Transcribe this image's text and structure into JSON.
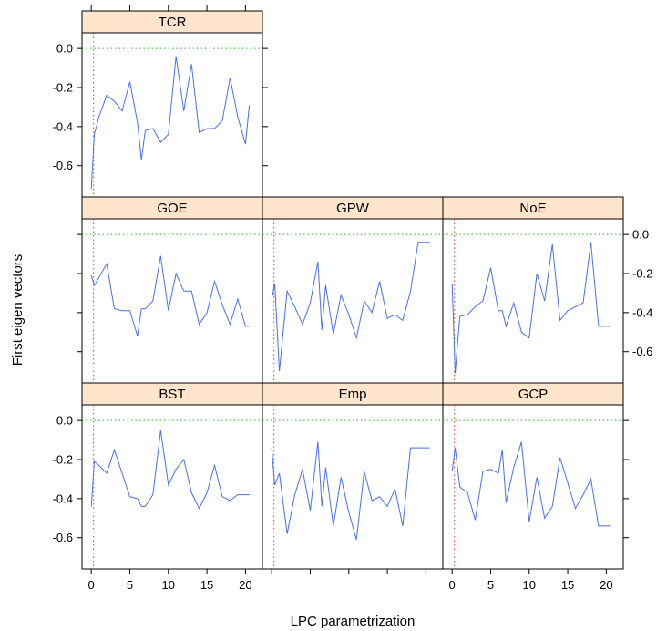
{
  "chart_data": {
    "type": "line",
    "layout": "lattice 3x3 trellis, panels: row1 TCR; row2 GOE, GPW, NoE; row3 BST, Emp, GCP",
    "xlabel": "LPC parametrization",
    "ylabel": "First eigen vectors",
    "xlim": [
      -1.2,
      22.2
    ],
    "ylim": [
      -0.76,
      0.08
    ],
    "x_ticks": [
      0,
      5,
      10,
      15,
      20
    ],
    "y_ticks": [
      0.0,
      -0.2,
      -0.4,
      -0.6
    ],
    "y_tick_labels": [
      "0.0",
      "-0.2",
      "-0.4",
      "-0.6"
    ],
    "x_tick_labels": [
      "0",
      "5",
      "10",
      "15",
      "20"
    ],
    "reference_lines": {
      "horizontal_y": 0.0,
      "vertical_x": 0.3
    },
    "colors": {
      "line": "#4a6fe3",
      "strip": "#ffe5cc",
      "h_ref": "#22bb22",
      "v_ref": "#cc4422"
    },
    "x": [
      0,
      0.4,
      1,
      2,
      3,
      4,
      5,
      6,
      6.5,
      7,
      8,
      9,
      10,
      11,
      12,
      13,
      14,
      15,
      16,
      17,
      18,
      19,
      20,
      20.5
    ],
    "panels": [
      {
        "name": "TCR",
        "values": [
          -0.72,
          -0.44,
          -0.35,
          -0.24,
          -0.27,
          -0.32,
          -0.17,
          -0.38,
          -0.57,
          -0.42,
          -0.41,
          -0.48,
          -0.44,
          -0.04,
          -0.32,
          -0.08,
          -0.43,
          -0.41,
          -0.41,
          -0.37,
          -0.15,
          -0.35,
          -0.49,
          -0.29
        ]
      },
      {
        "name": "GOE",
        "values": [
          -0.21,
          -0.26,
          -0.22,
          -0.15,
          -0.38,
          -0.39,
          -0.39,
          -0.52,
          -0.38,
          -0.38,
          -0.34,
          -0.11,
          -0.39,
          -0.2,
          -0.29,
          -0.29,
          -0.46,
          -0.4,
          -0.24,
          -0.36,
          -0.46,
          -0.33,
          -0.47,
          -0.47
        ]
      },
      {
        "name": "GPW",
        "values": [
          -0.33,
          -0.25,
          -0.7,
          -0.29,
          -0.37,
          -0.46,
          -0.35,
          -0.14,
          -0.49,
          -0.26,
          -0.51,
          -0.31,
          -0.41,
          -0.53,
          -0.34,
          -0.4,
          -0.24,
          -0.43,
          -0.41,
          -0.44,
          -0.29,
          -0.04,
          -0.04,
          -0.04
        ]
      },
      {
        "name": "NoE",
        "values": [
          -0.25,
          -0.71,
          -0.42,
          -0.41,
          -0.37,
          -0.34,
          -0.17,
          -0.39,
          -0.39,
          -0.47,
          -0.35,
          -0.5,
          -0.53,
          -0.2,
          -0.34,
          -0.05,
          -0.44,
          -0.39,
          -0.37,
          -0.35,
          -0.04,
          -0.47,
          -0.47,
          -0.47
        ]
      },
      {
        "name": "BST",
        "values": [
          -0.44,
          -0.21,
          -0.23,
          -0.27,
          -0.15,
          -0.27,
          -0.39,
          -0.4,
          -0.44,
          -0.44,
          -0.38,
          -0.05,
          -0.33,
          -0.25,
          -0.2,
          -0.37,
          -0.45,
          -0.37,
          -0.23,
          -0.39,
          -0.41,
          -0.38,
          -0.38,
          -0.38
        ]
      },
      {
        "name": "Emp",
        "values": [
          -0.14,
          -0.33,
          -0.27,
          -0.58,
          -0.38,
          -0.25,
          -0.46,
          -0.11,
          -0.44,
          -0.24,
          -0.54,
          -0.29,
          -0.47,
          -0.61,
          -0.26,
          -0.41,
          -0.39,
          -0.44,
          -0.35,
          -0.54,
          -0.14,
          -0.14,
          -0.14,
          -0.14
        ]
      },
      {
        "name": "GCP",
        "values": [
          -0.26,
          -0.14,
          -0.34,
          -0.37,
          -0.51,
          -0.26,
          -0.25,
          -0.27,
          -0.15,
          -0.42,
          -0.24,
          -0.11,
          -0.52,
          -0.29,
          -0.5,
          -0.44,
          -0.19,
          -0.32,
          -0.45,
          -0.38,
          -0.3,
          -0.54,
          -0.54,
          -0.54
        ]
      }
    ]
  }
}
